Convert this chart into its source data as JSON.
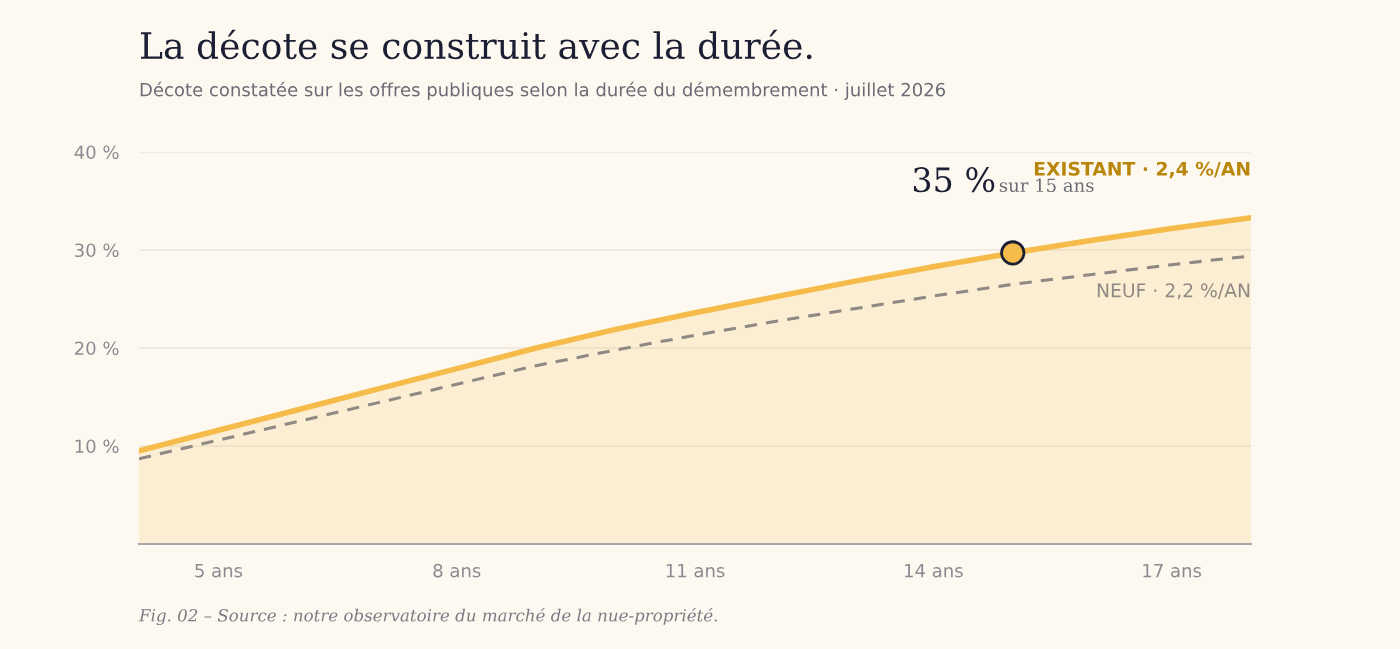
{
  "chart_data": {
    "type": "area",
    "title": "La décote se construit avec la durée.",
    "subtitle": "Décote constatée sur les offres publiques selon la durée du démembrement · juillet 2026",
    "x": [
      4,
      5,
      6,
      7,
      8,
      9,
      10,
      11,
      12,
      13,
      14,
      15,
      16,
      17,
      18
    ],
    "series": [
      {
        "name": "EXISTANT · 2,4 %/AN",
        "color": "#f5bc4c",
        "values": [
          9.5,
          11.6,
          13.7,
          15.8,
          17.9,
          20.0,
          21.9,
          23.6,
          25.2,
          26.8,
          28.3,
          29.7,
          31.0,
          32.2,
          33.3
        ]
      },
      {
        "name": "NEUF · 2,2 %/AN",
        "type": "line",
        "color": "#8f8984",
        "line_style": "dashed",
        "values": [
          8.7,
          10.6,
          12.5,
          14.4,
          16.3,
          18.2,
          19.8,
          21.3,
          22.7,
          24.0,
          25.3,
          26.5,
          27.5,
          28.5,
          29.4
        ]
      },
      {
        "type": "scatter",
        "color": "#f5bc4c",
        "marker": "circle",
        "x": [
          15
        ],
        "values": [
          29.7
        ]
      }
    ],
    "xlim": [
      4,
      18
    ],
    "xticks": [
      {
        "value": 5,
        "label": "5 ans"
      },
      {
        "value": 8,
        "label": "8 ans"
      },
      {
        "value": 11,
        "label": "11 ans"
      },
      {
        "value": 14,
        "label": "14 ans"
      },
      {
        "value": 17,
        "label": "17 ans"
      }
    ],
    "ylim": [
      0,
      40
    ],
    "yticks": [
      {
        "value": 10,
        "label": "10 %"
      },
      {
        "value": 20,
        "label": "20 %"
      },
      {
        "value": 30,
        "label": "30 %"
      },
      {
        "value": 40,
        "label": "40 %"
      }
    ],
    "grid": "y",
    "legend": false,
    "annotations": [
      {
        "text": "35 %",
        "x": 15,
        "y": 29.7
      },
      "sur 15 ans",
      "Fig. 02 – Source : notre observatoire du marché de la nue-propriété."
    ]
  }
}
